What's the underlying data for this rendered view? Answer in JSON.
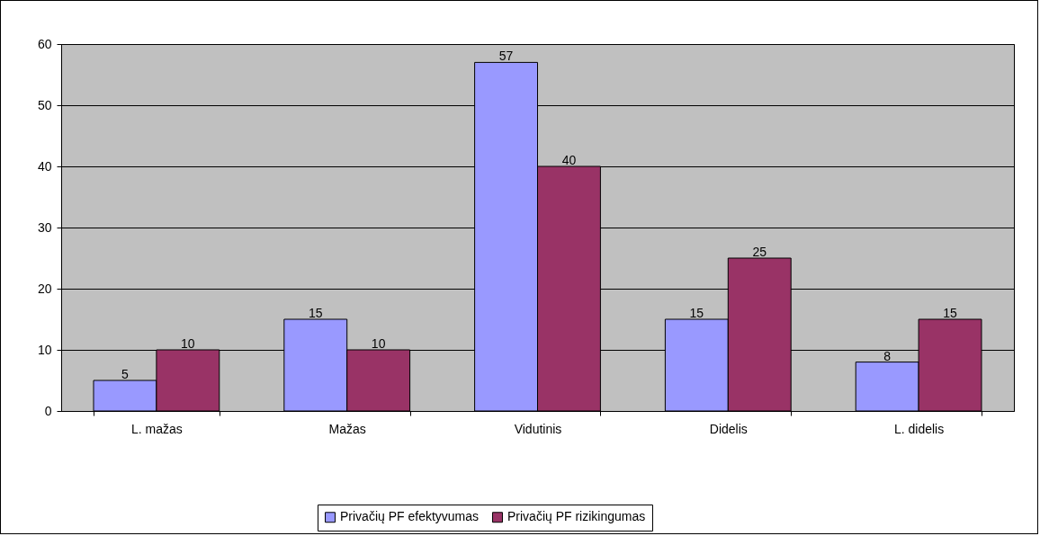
{
  "chart_data": {
    "type": "bar",
    "categories": [
      "L. mažas",
      "Mažas",
      "Vidutinis",
      "Didelis",
      "L. didelis"
    ],
    "series": [
      {
        "name": "Privačių PF efektyvumas",
        "color": "#9999ff",
        "values": [
          5,
          15,
          57,
          15,
          8
        ]
      },
      {
        "name": "Privačių PF rizikingumas",
        "color": "#993366",
        "values": [
          10,
          10,
          40,
          25,
          15
        ]
      }
    ],
    "ylim": [
      0,
      60
    ],
    "yticks": [
      0,
      10,
      20,
      30,
      40,
      50,
      60
    ],
    "grid": "y",
    "legend": "bottom",
    "data_labels": true
  }
}
